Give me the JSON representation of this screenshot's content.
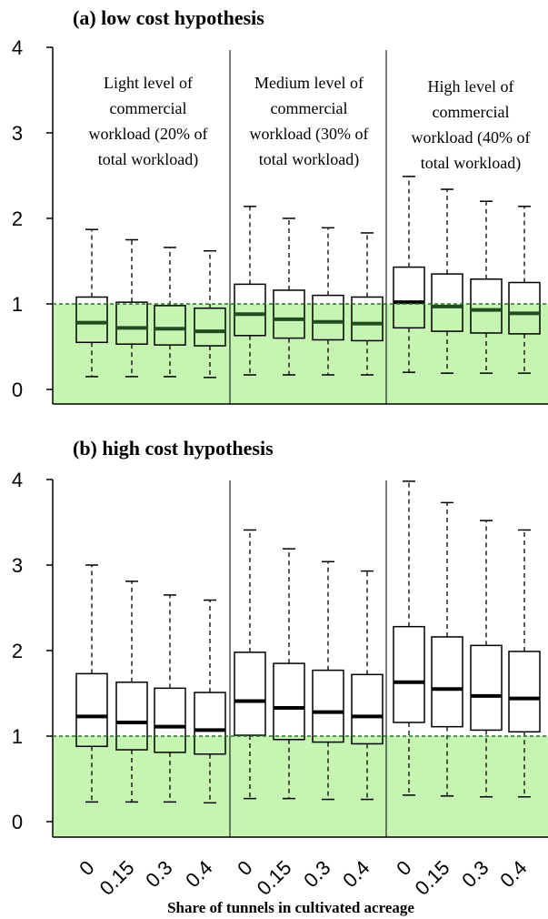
{
  "figure": {
    "xlabel": "Share of tunnels in cultivated acreage",
    "x_tick_labels": [
      "0",
      "0.15",
      "0.3",
      "0.4",
      "0",
      "0.15",
      "0.3",
      "0.4",
      "0",
      "0.15",
      "0.3",
      "0.4"
    ],
    "shade_color": "#c6f5b3",
    "reference_line_color": "#227722",
    "median_color_in_shade": "#1f4d1f"
  },
  "chart_data": [
    {
      "type": "box",
      "title": "(a) low cost hypothesis",
      "ylim": [
        -0.15,
        4.3
      ],
      "yticks": [
        0,
        1,
        2,
        3,
        4
      ],
      "reference_line": 1,
      "shaded_below": 1,
      "groups": [
        {
          "label_lines": [
            "Light level of",
            "commercial",
            "workload (20% of",
            "total workload)"
          ]
        },
        {
          "label_lines": [
            "Medium level of",
            "commercial",
            "workload (30% of",
            "total workload)"
          ]
        },
        {
          "label_lines": [
            "High level of",
            "commercial",
            "workload (40% of",
            "total workload)"
          ]
        }
      ],
      "boxes": [
        {
          "group": 0,
          "x": "0",
          "min": 0.15,
          "q1": 0.55,
          "median": 0.78,
          "q3": 1.08,
          "max": 1.87
        },
        {
          "group": 0,
          "x": "0.15",
          "min": 0.15,
          "q1": 0.53,
          "median": 0.72,
          "q3": 1.02,
          "max": 1.75
        },
        {
          "group": 0,
          "x": "0.3",
          "min": 0.15,
          "q1": 0.52,
          "median": 0.71,
          "q3": 0.98,
          "max": 1.66
        },
        {
          "group": 0,
          "x": "0.4",
          "min": 0.14,
          "q1": 0.51,
          "median": 0.68,
          "q3": 0.95,
          "max": 1.62
        },
        {
          "group": 1,
          "x": "0",
          "min": 0.17,
          "q1": 0.63,
          "median": 0.88,
          "q3": 1.23,
          "max": 2.14
        },
        {
          "group": 1,
          "x": "0.15",
          "min": 0.17,
          "q1": 0.6,
          "median": 0.82,
          "q3": 1.16,
          "max": 2.0
        },
        {
          "group": 1,
          "x": "0.3",
          "min": 0.17,
          "q1": 0.58,
          "median": 0.79,
          "q3": 1.1,
          "max": 1.89
        },
        {
          "group": 1,
          "x": "0.4",
          "min": 0.17,
          "q1": 0.57,
          "median": 0.77,
          "q3": 1.08,
          "max": 1.83
        },
        {
          "group": 2,
          "x": "0",
          "min": 0.2,
          "q1": 0.72,
          "median": 1.02,
          "q3": 1.43,
          "max": 2.49
        },
        {
          "group": 2,
          "x": "0.15",
          "min": 0.19,
          "q1": 0.68,
          "median": 0.97,
          "q3": 1.35,
          "max": 2.34
        },
        {
          "group": 2,
          "x": "0.3",
          "min": 0.19,
          "q1": 0.66,
          "median": 0.93,
          "q3": 1.29,
          "max": 2.2
        },
        {
          "group": 2,
          "x": "0.4",
          "min": 0.19,
          "q1": 0.65,
          "median": 0.89,
          "q3": 1.25,
          "max": 2.14
        }
      ]
    },
    {
      "type": "box",
      "title": "(b) high cost hypothesis",
      "ylim": [
        -0.15,
        4.3
      ],
      "yticks": [
        0,
        1,
        2,
        3,
        4
      ],
      "reference_line": 1,
      "shaded_below": 1,
      "groups": [
        {
          "label_lines": []
        },
        {
          "label_lines": []
        },
        {
          "label_lines": []
        }
      ],
      "boxes": [
        {
          "group": 0,
          "x": "0",
          "min": 0.23,
          "q1": 0.88,
          "median": 1.23,
          "q3": 1.73,
          "max": 3.0
        },
        {
          "group": 0,
          "x": "0.15",
          "min": 0.23,
          "q1": 0.84,
          "median": 1.16,
          "q3": 1.63,
          "max": 2.81
        },
        {
          "group": 0,
          "x": "0.3",
          "min": 0.23,
          "q1": 0.81,
          "median": 1.11,
          "q3": 1.56,
          "max": 2.65
        },
        {
          "group": 0,
          "x": "0.4",
          "min": 0.22,
          "q1": 0.79,
          "median": 1.07,
          "q3": 1.51,
          "max": 2.59
        },
        {
          "group": 1,
          "x": "0",
          "min": 0.27,
          "q1": 1.01,
          "median": 1.41,
          "q3": 1.98,
          "max": 3.41
        },
        {
          "group": 1,
          "x": "0.15",
          "min": 0.27,
          "q1": 0.96,
          "median": 1.33,
          "q3": 1.85,
          "max": 3.19
        },
        {
          "group": 1,
          "x": "0.3",
          "min": 0.26,
          "q1": 0.93,
          "median": 1.28,
          "q3": 1.77,
          "max": 3.04
        },
        {
          "group": 1,
          "x": "0.4",
          "min": 0.26,
          "q1": 0.91,
          "median": 1.23,
          "q3": 1.72,
          "max": 2.93
        },
        {
          "group": 2,
          "x": "0",
          "min": 0.31,
          "q1": 1.16,
          "median": 1.63,
          "q3": 2.28,
          "max": 3.98
        },
        {
          "group": 2,
          "x": "0.15",
          "min": 0.3,
          "q1": 1.11,
          "median": 1.55,
          "q3": 2.16,
          "max": 3.73
        },
        {
          "group": 2,
          "x": "0.3",
          "min": 0.29,
          "q1": 1.07,
          "median": 1.47,
          "q3": 2.06,
          "max": 3.52
        },
        {
          "group": 2,
          "x": "0.4",
          "min": 0.29,
          "q1": 1.05,
          "median": 1.44,
          "q3": 1.99,
          "max": 3.41
        }
      ]
    }
  ]
}
